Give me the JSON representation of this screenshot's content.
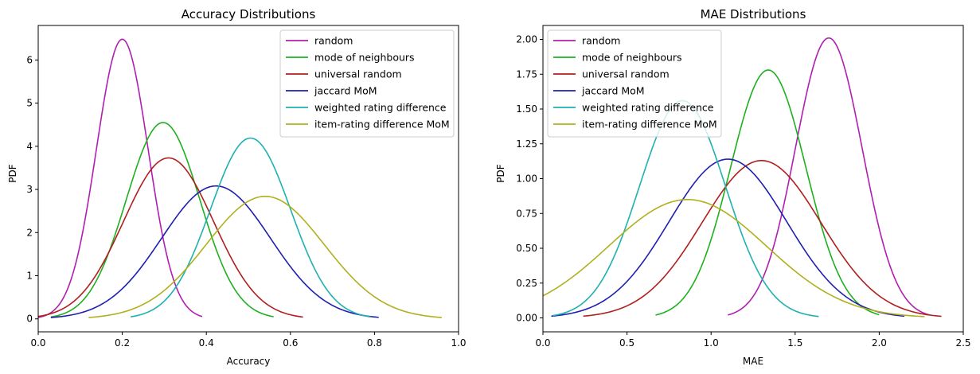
{
  "chart_data": [
    {
      "type": "line",
      "title": "Accuracy Distributions",
      "xlabel": "Accuracy",
      "ylabel": "PDF",
      "xlim": [
        0.0,
        1.0
      ],
      "ylim": [
        -0.3,
        6.8
      ],
      "xticks": [
        "0.0",
        "0.2",
        "0.4",
        "0.6",
        "0.8",
        "1.0"
      ],
      "yticks": [
        "0",
        "1",
        "2",
        "3",
        "4",
        "5",
        "6"
      ],
      "xtick_values": [
        0.0,
        0.2,
        0.4,
        0.6,
        0.8,
        1.0
      ],
      "ytick_values": [
        0,
        1,
        2,
        3,
        4,
        5,
        6
      ],
      "grid": false,
      "legend_position": "top-right",
      "series": [
        {
          "name": "random",
          "color": "#b01fb0",
          "distribution": "normal",
          "mean": 0.2,
          "peak": 6.48,
          "x_range": [
            0.0,
            0.39
          ]
        },
        {
          "name": "mode of neighbours",
          "color": "#1fb01f",
          "distribution": "normal",
          "mean": 0.297,
          "peak": 4.55,
          "x_range": [
            0.03,
            0.56
          ]
        },
        {
          "name": "universal random",
          "color": "#b01f1f",
          "distribution": "normal",
          "mean": 0.31,
          "peak": 3.73,
          "x_range": [
            0.0,
            0.63
          ]
        },
        {
          "name": "jaccard MoM",
          "color": "#1f1fb0",
          "distribution": "normal",
          "mean": 0.423,
          "peak": 3.08,
          "x_range": [
            0.03,
            0.81
          ]
        },
        {
          "name": "weighted rating difference",
          "color": "#1fb0b0",
          "distribution": "normal",
          "mean": 0.505,
          "peak": 4.19,
          "x_range": [
            0.22,
            0.79
          ]
        },
        {
          "name": "item-rating difference MoM",
          "color": "#b0b01f",
          "distribution": "normal",
          "mean": 0.54,
          "peak": 2.84,
          "x_range": [
            0.12,
            0.96
          ]
        }
      ]
    },
    {
      "type": "line",
      "title": "MAE Distributions",
      "xlabel": "MAE",
      "ylabel": "PDF",
      "xlim": [
        0.0,
        2.5
      ],
      "ylim": [
        -0.1,
        2.1
      ],
      "xticks": [
        "0.0",
        "0.5",
        "1.0",
        "1.5",
        "2.0",
        "2.5"
      ],
      "yticks": [
        "0.00",
        "0.25",
        "0.50",
        "0.75",
        "1.00",
        "1.25",
        "1.50",
        "1.75",
        "2.00"
      ],
      "xtick_values": [
        0.0,
        0.5,
        1.0,
        1.5,
        2.0,
        2.5
      ],
      "ytick_values": [
        0,
        0.25,
        0.5,
        0.75,
        1.0,
        1.25,
        1.5,
        1.75,
        2.0
      ],
      "grid": false,
      "legend_position": "top-left",
      "series": [
        {
          "name": "random",
          "color": "#b01fb0",
          "distribution": "normal",
          "mean": 1.7,
          "peak": 2.01,
          "x_range": [
            1.1,
            2.3
          ]
        },
        {
          "name": "mode of neighbours",
          "color": "#1fb01f",
          "distribution": "normal",
          "mean": 1.34,
          "peak": 1.78,
          "x_range": [
            0.67,
            2.0
          ]
        },
        {
          "name": "universal random",
          "color": "#b01f1f",
          "distribution": "normal",
          "mean": 1.3,
          "peak": 1.13,
          "x_range": [
            0.24,
            2.37
          ]
        },
        {
          "name": "jaccard MoM",
          "color": "#1f1fb0",
          "distribution": "normal",
          "mean": 1.1,
          "peak": 1.14,
          "x_range": [
            0.05,
            2.15
          ]
        },
        {
          "name": "weighted rating difference",
          "color": "#1fb0b0",
          "distribution": "normal",
          "mean": 0.83,
          "peak": 1.56,
          "x_range": [
            0.06,
            1.64
          ]
        },
        {
          "name": "item-rating difference MoM",
          "color": "#b0b01f",
          "distribution": "normal",
          "mean": 0.86,
          "peak": 0.85,
          "x_range": [
            0.0,
            2.27
          ]
        }
      ]
    }
  ]
}
